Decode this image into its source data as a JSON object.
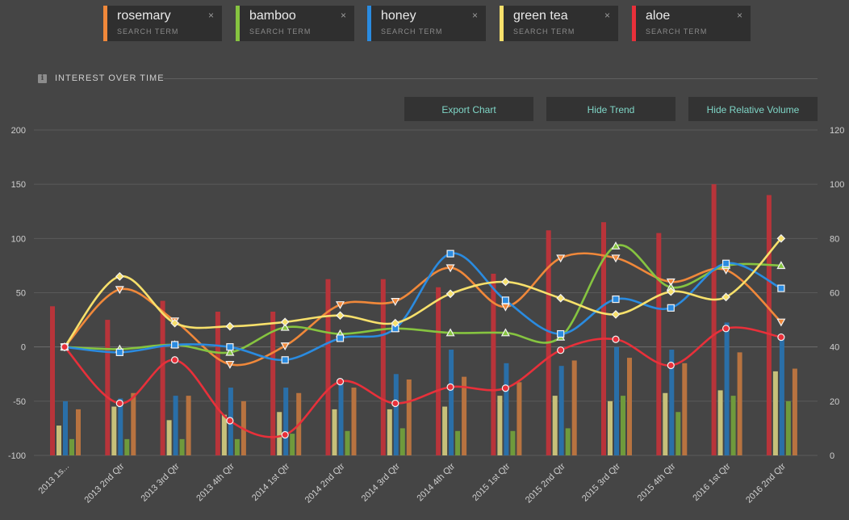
{
  "search_terms": [
    {
      "name": "rosemary",
      "sub": "SEARCH TERM",
      "color": "#f0883a"
    },
    {
      "name": "bamboo",
      "sub": "SEARCH TERM",
      "color": "#86c440"
    },
    {
      "name": "honey",
      "sub": "SEARCH TERM",
      "color": "#2a8be0"
    },
    {
      "name": "green tea",
      "sub": "SEARCH TERM",
      "color": "#f7e06b"
    },
    {
      "name": "aloe",
      "sub": "SEARCH TERM",
      "color": "#e8303a"
    }
  ],
  "close_glyph": "×",
  "section": {
    "title": "INTEREST OVER TIME",
    "info_icon": "info-icon",
    "info_glyph": "i"
  },
  "buttons": {
    "export": "Export Chart",
    "hide_trend": "Hide Trend",
    "hide_volume": "Hide Relative Volume"
  },
  "chart_data": {
    "type": "line",
    "categories": [
      "2013 1s...",
      "2013 2nd Qtr",
      "2013 3rd Qtr",
      "2013 4th Qtr",
      "2014 1st Qtr",
      "2014 2nd Qtr",
      "2014 3rd Qtr",
      "2014 4th Qtr",
      "2015 1st Qtr",
      "2015 2nd Qtr",
      "2015 3rd Qtr",
      "2015 4th Qtr",
      "2016 1st Qtr",
      "2016 2nd Qtr"
    ],
    "y_left": {
      "min": -100,
      "max": 200,
      "ticks": [
        -100,
        -50,
        0,
        50,
        100,
        150,
        200
      ]
    },
    "y_right": {
      "min": 0,
      "max": 120,
      "ticks": [
        0,
        20,
        40,
        60,
        80,
        100,
        120
      ]
    },
    "grid": true,
    "trend_series": [
      {
        "name": "rosemary",
        "color": "#f0883a",
        "marker": "triangle-down",
        "values": [
          0,
          53,
          24,
          -16,
          1,
          39,
          42,
          73,
          37,
          82,
          82,
          60,
          71,
          23
        ]
      },
      {
        "name": "bamboo",
        "color": "#86c440",
        "marker": "triangle",
        "values": [
          0,
          -2,
          2,
          -5,
          18,
          12,
          17,
          13,
          13,
          9,
          93,
          55,
          75,
          75
        ]
      },
      {
        "name": "honey",
        "color": "#2a8be0",
        "marker": "square",
        "values": [
          0,
          -5,
          2,
          0,
          -12,
          8,
          17,
          86,
          43,
          12,
          44,
          36,
          77,
          54
        ]
      },
      {
        "name": "green tea",
        "color": "#f7e06b",
        "marker": "diamond",
        "values": [
          0,
          65,
          22,
          19,
          23,
          29,
          22,
          49,
          60,
          45,
          30,
          51,
          46,
          100
        ]
      },
      {
        "name": "aloe",
        "color": "#e8303a",
        "marker": "circle",
        "values": [
          0,
          -52,
          -12,
          -68,
          -81,
          -32,
          -52,
          -37,
          -38,
          -3,
          7,
          -17,
          17,
          9
        ]
      }
    ],
    "volume_series": [
      {
        "name": "aloe",
        "color": "#b8343a",
        "values": [
          55,
          50,
          57,
          53,
          53,
          65,
          65,
          62,
          67,
          83,
          86,
          82,
          100,
          96
        ]
      },
      {
        "name": "green tea",
        "color": "#c7c07a",
        "values": [
          11,
          18,
          13,
          15,
          16,
          17,
          17,
          18,
          22,
          22,
          20,
          23,
          24,
          31
        ]
      },
      {
        "name": "honey",
        "color": "#2a6fa8",
        "values": [
          20,
          21,
          22,
          25,
          25,
          28,
          30,
          39,
          34,
          33,
          40,
          39,
          49,
          44
        ]
      },
      {
        "name": "bamboo",
        "color": "#6f9a3c",
        "values": [
          6,
          6,
          6,
          6,
          8,
          9,
          10,
          9,
          9,
          10,
          22,
          16,
          22,
          20
        ]
      },
      {
        "name": "rosemary",
        "color": "#b87340",
        "values": [
          17,
          23,
          22,
          20,
          23,
          25,
          28,
          29,
          27,
          35,
          36,
          34,
          38,
          32
        ]
      }
    ]
  }
}
